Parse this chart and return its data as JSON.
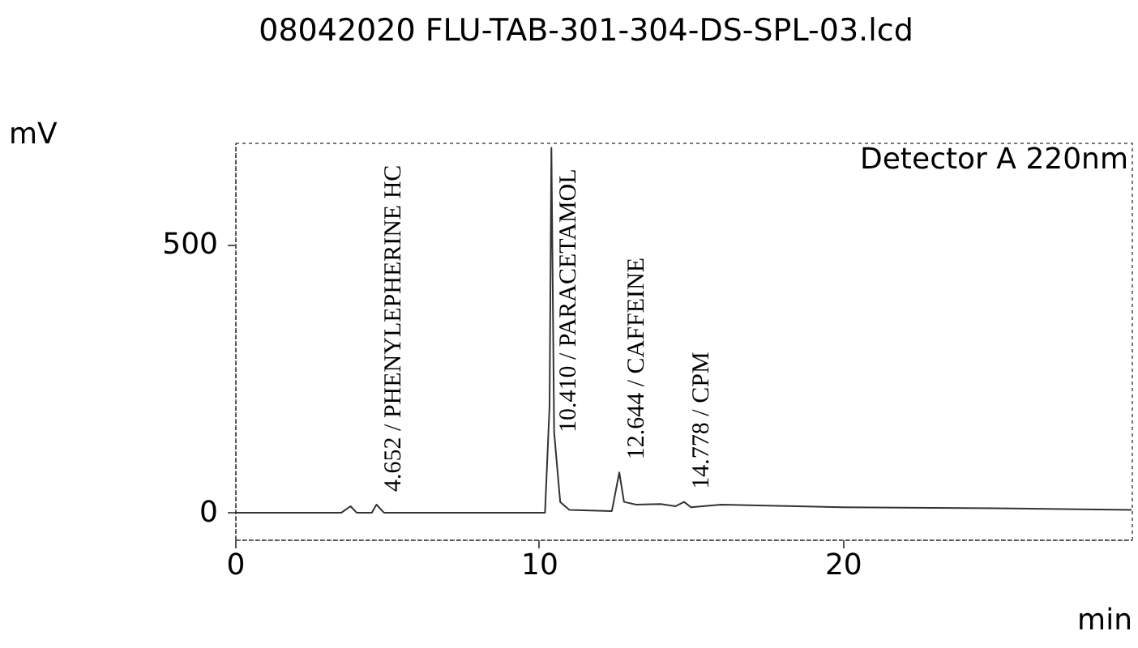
{
  "chart_data": {
    "type": "line",
    "title": "08042020 FLU-TAB-301-304-DS-SPL-03.lcd",
    "xlabel": "min",
    "ylabel": "mV",
    "x": [
      0,
      3.5,
      3.8,
      4.0,
      4.5,
      4.652,
      4.9,
      10.2,
      10.35,
      10.41,
      10.5,
      10.7,
      11,
      12.4,
      12.644,
      12.8,
      13.2,
      14.0,
      14.5,
      14.778,
      15,
      16,
      20,
      25,
      29.5
    ],
    "series": [
      {
        "color": "#333333",
        "values": [
          0,
          0,
          12,
          0,
          0,
          15,
          0,
          0,
          200,
          680,
          150,
          20,
          5,
          3,
          75,
          20,
          15,
          16,
          12,
          20,
          10,
          15,
          10,
          8,
          5
        ]
      }
    ],
    "xlim": [
      0,
      29.5
    ],
    "ylim": [
      -50,
      690
    ],
    "xticks": [
      0,
      10,
      20
    ],
    "yticks": [
      0,
      500
    ],
    "grid": false,
    "legend": false,
    "marker": "none",
    "line_style": "solid",
    "annotations": [
      "Detector A 220nm",
      {
        "text": "4.652 / PHENYLEPHERINE HC",
        "x": 4.652,
        "y": 15
      },
      {
        "text": "10.410 / PARACETAMOL",
        "x": 10.41,
        "y": 125
      },
      {
        "text": "12.644 / CAFFEINE",
        "x": 12.644,
        "y": 75
      },
      {
        "text": "14.778 / CPM",
        "x": 14.778,
        "y": 20
      }
    ]
  }
}
